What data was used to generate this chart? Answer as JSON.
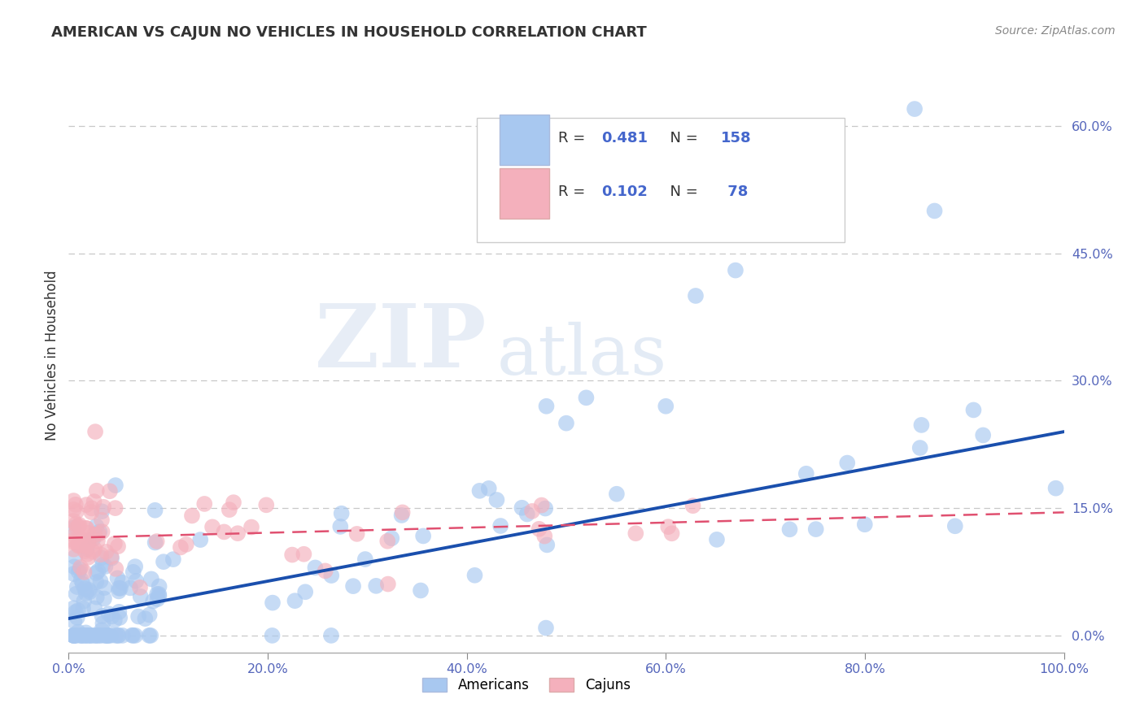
{
  "title": "AMERICAN VS CAJUN NO VEHICLES IN HOUSEHOLD CORRELATION CHART",
  "source": "Source: ZipAtlas.com",
  "ylabel": "No Vehicles in Household",
  "xlim": [
    0.0,
    1.0
  ],
  "ylim": [
    -0.02,
    0.68
  ],
  "x_ticks": [
    0.0,
    0.2,
    0.4,
    0.6,
    0.8,
    1.0
  ],
  "x_tick_labels": [
    "0.0%",
    "20.0%",
    "40.0%",
    "60.0%",
    "80.0%",
    "100.0%"
  ],
  "y_ticks": [
    0.0,
    0.15,
    0.3,
    0.45,
    0.6
  ],
  "y_tick_labels": [
    "0.0%",
    "15.0%",
    "30.0%",
    "45.0%",
    "60.0%"
  ],
  "american_R": "0.481",
  "american_N": "158",
  "cajun_R": "0.102",
  "cajun_N": "78",
  "american_color": "#a8c8f0",
  "cajun_color": "#f4b0bc",
  "american_line_color": "#1a4fad",
  "cajun_line_color": "#e05070",
  "watermark_zip": "ZIP",
  "watermark_atlas": "atlas",
  "background_color": "#ffffff",
  "grid_color": "#c8c8c8",
  "american_line_slope": 0.22,
  "american_line_intercept": 0.02,
  "cajun_line_slope": 0.03,
  "cajun_line_intercept": 0.115
}
